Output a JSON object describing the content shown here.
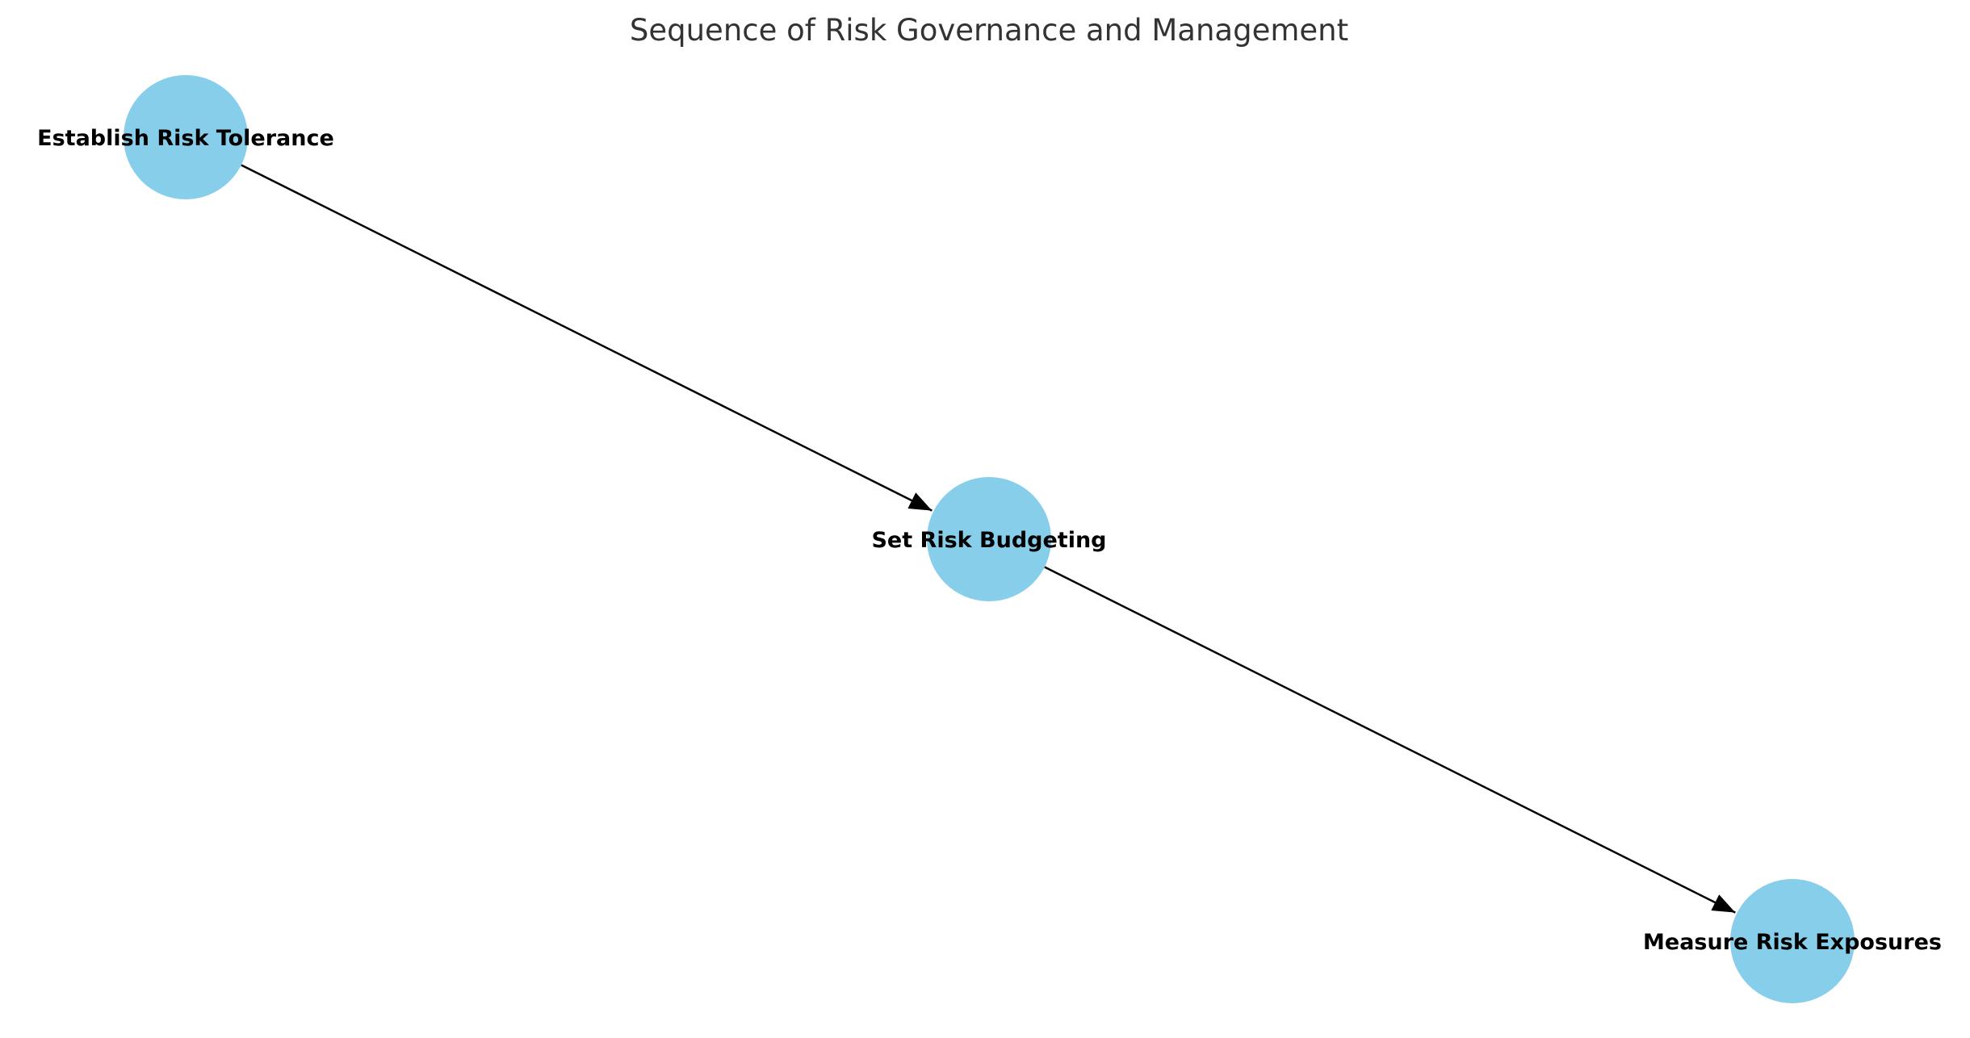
{
  "diagram": {
    "title": "Sequence of Risk Governance and Management",
    "node_color": "#87CEEB",
    "edge_color": "#000000",
    "nodes": [
      {
        "id": "tolerance",
        "label": "Establish Risk Tolerance"
      },
      {
        "id": "budgeting",
        "label": "Set Risk Budgeting"
      },
      {
        "id": "exposures",
        "label": "Measure Risk Exposures"
      }
    ],
    "edges": [
      {
        "from": "tolerance",
        "to": "budgeting"
      },
      {
        "from": "budgeting",
        "to": "exposures"
      }
    ]
  }
}
